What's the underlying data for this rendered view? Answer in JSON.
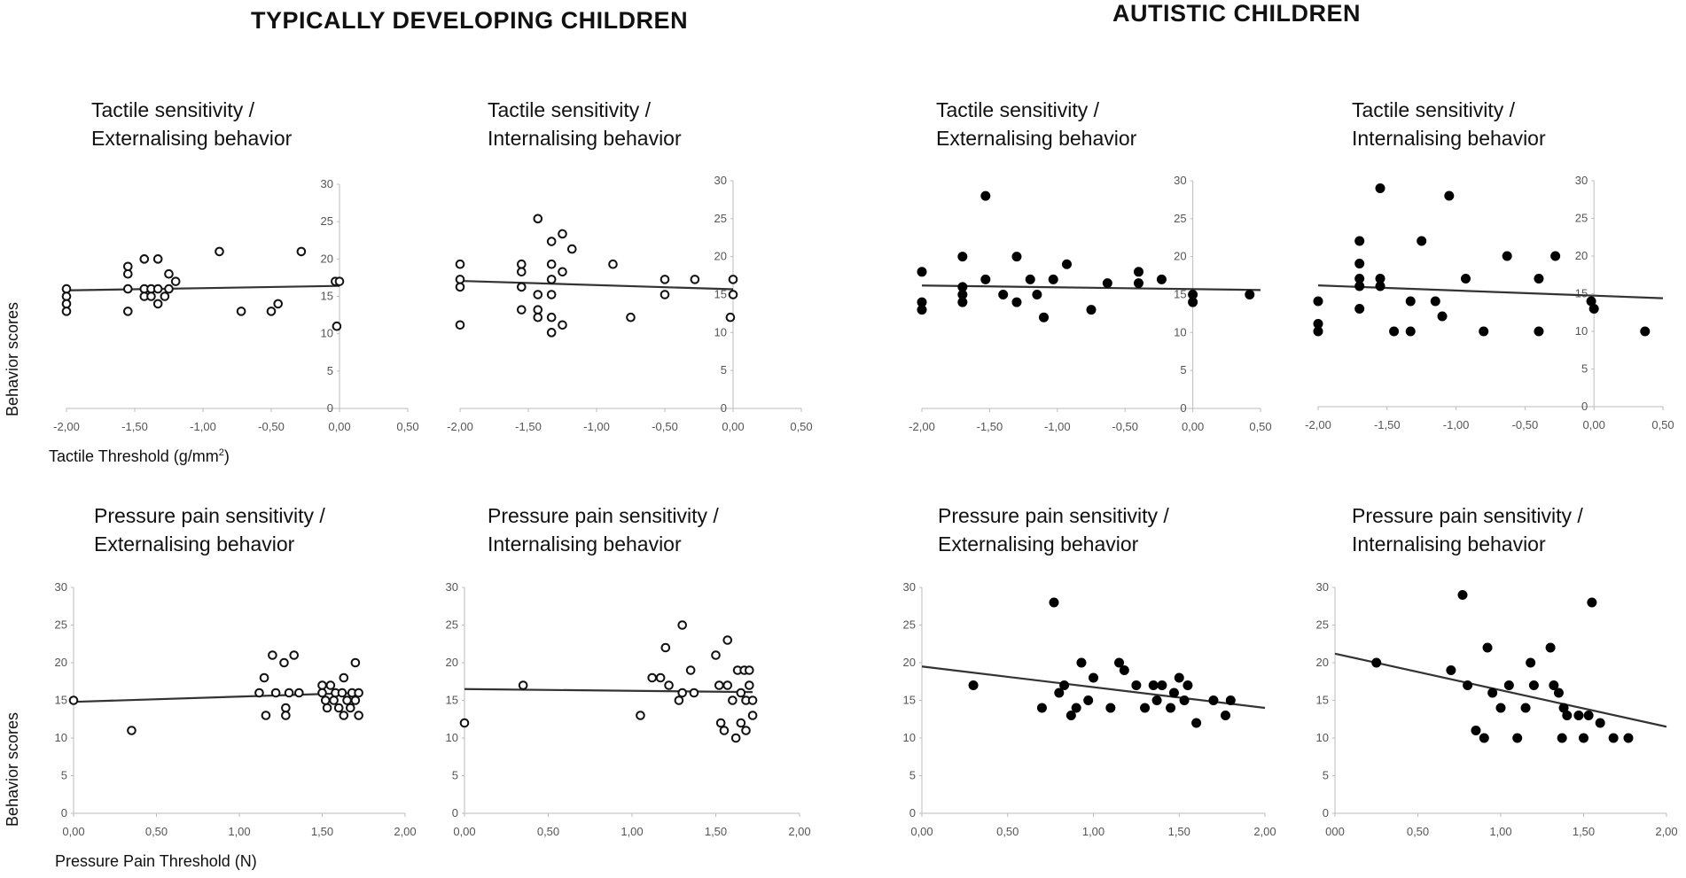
{
  "figure": {
    "left_group_title": "TYPICALLY DEVELOPING CHILDREN",
    "right_group_title": "AUTISTIC CHILDREN",
    "y_axis_label": "Behavior scores",
    "x_axis_label_tactile_prefix": "Tactile  Threshold (g/mm",
    "x_axis_label_tactile_sup": "2",
    "x_axis_label_tactile_suffix": ")",
    "x_axis_label_pressure": "Pressure Pain Threshold (N)"
  },
  "chart_data": [
    {
      "id": "td-tactile-ext",
      "type": "scatter",
      "group": "typically developing",
      "title_line1": "Tactile sensitivity /",
      "title_line2": "Externalising behavior",
      "xlim": [
        -2,
        0.5
      ],
      "ylim": [
        0,
        30
      ],
      "xticks": [
        -2,
        -1.5,
        -1,
        -0.5,
        0,
        0.5
      ],
      "xtick_labels": [
        "-2,00",
        "-1,50",
        "-1,00",
        "-0,50",
        "0,00",
        "0,50"
      ],
      "yticks": [
        0,
        5,
        10,
        15,
        20,
        25,
        30
      ],
      "ytick_labels": [
        "0",
        "5",
        "10",
        "15",
        "20",
        "25",
        "30"
      ],
      "marker": "open",
      "points": [
        [
          -2,
          16
        ],
        [
          -2,
          15
        ],
        [
          -2,
          14
        ],
        [
          -2,
          13
        ],
        [
          -1.55,
          19
        ],
        [
          -1.55,
          18
        ],
        [
          -1.55,
          16
        ],
        [
          -1.55,
          13
        ],
        [
          -1.43,
          20
        ],
        [
          -1.43,
          16
        ],
        [
          -1.43,
          15
        ],
        [
          -1.38,
          16
        ],
        [
          -1.38,
          15
        ],
        [
          -1.33,
          20
        ],
        [
          -1.33,
          16
        ],
        [
          -1.33,
          14
        ],
        [
          -1.28,
          15
        ],
        [
          -1.25,
          18
        ],
        [
          -1.25,
          16
        ],
        [
          -1.2,
          17
        ],
        [
          -0.88,
          21
        ],
        [
          -0.72,
          13
        ],
        [
          -0.5,
          13
        ],
        [
          -0.45,
          14
        ],
        [
          -0.28,
          21
        ],
        [
          -0.03,
          17
        ],
        [
          0,
          17
        ],
        [
          -0.02,
          11
        ]
      ],
      "trend": [
        [
          -2,
          15.8
        ],
        [
          0,
          16.4
        ]
      ],
      "trend_span": [
        -2,
        0
      ]
    },
    {
      "id": "td-tactile-int",
      "type": "scatter",
      "group": "typically developing",
      "title_line1": "Tactile sensitivity /",
      "title_line2": "Internalising behavior",
      "xlim": [
        -2,
        0.5
      ],
      "ylim": [
        0,
        30
      ],
      "xticks": [
        -2,
        -1.5,
        -1,
        -0.5,
        0,
        0.5
      ],
      "xtick_labels": [
        "-2,00",
        "-1,50",
        "-1,00",
        "-0,50",
        "0,00",
        "0,50"
      ],
      "yticks": [
        0,
        5,
        10,
        15,
        20,
        25,
        30
      ],
      "ytick_labels": [
        "0",
        "5",
        "10",
        "15",
        "20",
        "25",
        "30"
      ],
      "marker": "open",
      "points": [
        [
          -2,
          19
        ],
        [
          -2,
          17
        ],
        [
          -2,
          16
        ],
        [
          -2,
          11
        ],
        [
          -1.55,
          19
        ],
        [
          -1.55,
          18
        ],
        [
          -1.55,
          16
        ],
        [
          -1.55,
          13
        ],
        [
          -1.43,
          25
        ],
        [
          -1.43,
          15
        ],
        [
          -1.43,
          13
        ],
        [
          -1.43,
          12
        ],
        [
          -1.33,
          22
        ],
        [
          -1.33,
          19
        ],
        [
          -1.33,
          17
        ],
        [
          -1.33,
          15
        ],
        [
          -1.33,
          12
        ],
        [
          -1.33,
          10
        ],
        [
          -1.25,
          23
        ],
        [
          -1.25,
          18
        ],
        [
          -1.25,
          11
        ],
        [
          -1.18,
          21
        ],
        [
          -0.88,
          19
        ],
        [
          -0.75,
          12
        ],
        [
          -0.5,
          17
        ],
        [
          -0.5,
          15
        ],
        [
          -0.28,
          17
        ],
        [
          0,
          17
        ],
        [
          0,
          15
        ],
        [
          -0.02,
          12
        ]
      ],
      "trend": [
        [
          -2,
          16.8
        ],
        [
          0,
          15.7
        ]
      ],
      "trend_span": [
        -2,
        0
      ]
    },
    {
      "id": "aut-tactile-ext",
      "type": "scatter",
      "group": "autistic",
      "title_line1": "Tactile sensitivity /",
      "title_line2": "Externalising behavior",
      "xlim": [
        -2,
        0.5
      ],
      "ylim": [
        0,
        30
      ],
      "xticks": [
        -2,
        -1.5,
        -1,
        -0.5,
        0,
        0.5
      ],
      "xtick_labels": [
        "-2,00",
        "-1,50",
        "-1,00",
        "-0,50",
        "0,00",
        "0,50"
      ],
      "yticks": [
        0,
        5,
        10,
        15,
        20,
        25,
        30
      ],
      "ytick_labels": [
        "0",
        "5",
        "10",
        "15",
        "20",
        "25",
        "30"
      ],
      "marker": "filled",
      "points": [
        [
          -2,
          18
        ],
        [
          -2,
          14
        ],
        [
          -2,
          13
        ],
        [
          -1.7,
          20
        ],
        [
          -1.7,
          16
        ],
        [
          -1.7,
          15
        ],
        [
          -1.7,
          14
        ],
        [
          -1.53,
          28
        ],
        [
          -1.53,
          17
        ],
        [
          -1.4,
          15
        ],
        [
          -1.3,
          20
        ],
        [
          -1.3,
          14
        ],
        [
          -1.2,
          17
        ],
        [
          -1.15,
          15
        ],
        [
          -1.1,
          12
        ],
        [
          -1.03,
          17
        ],
        [
          -0.93,
          19
        ],
        [
          -0.75,
          13
        ],
        [
          -0.63,
          16.5
        ],
        [
          -0.4,
          18
        ],
        [
          -0.4,
          16.5
        ],
        [
          -0.23,
          17
        ],
        [
          0,
          15
        ],
        [
          0,
          14
        ],
        [
          0.42,
          15
        ]
      ],
      "trend": [
        [
          -2,
          16.2
        ],
        [
          0.5,
          15.6
        ]
      ],
      "trend_span": [
        -2,
        0.5
      ]
    },
    {
      "id": "aut-tactile-int",
      "type": "scatter",
      "group": "autistic",
      "title_line1": "Tactile sensitivity /",
      "title_line2": "Internalising behavior",
      "xlim": [
        -2,
        0.5
      ],
      "ylim": [
        0,
        30
      ],
      "xticks": [
        -2,
        -1.5,
        -1,
        -0.5,
        0,
        0.5
      ],
      "xtick_labels": [
        "-2,00",
        "-1,50",
        "-1,00",
        "-0,50",
        "0,00",
        "0,50"
      ],
      "yticks": [
        0,
        5,
        10,
        15,
        20,
        25,
        30
      ],
      "ytick_labels": [
        "0",
        "5",
        "10",
        "15",
        "20",
        "25",
        "30"
      ],
      "marker": "filled",
      "points": [
        [
          -2,
          14
        ],
        [
          -2,
          11
        ],
        [
          -2,
          10
        ],
        [
          -1.7,
          22
        ],
        [
          -1.7,
          19
        ],
        [
          -1.7,
          17
        ],
        [
          -1.7,
          16
        ],
        [
          -1.7,
          13
        ],
        [
          -1.55,
          29
        ],
        [
          -1.55,
          17
        ],
        [
          -1.55,
          16
        ],
        [
          -1.45,
          10
        ],
        [
          -1.33,
          14
        ],
        [
          -1.33,
          10
        ],
        [
          -1.25,
          22
        ],
        [
          -1.15,
          14
        ],
        [
          -1.1,
          12
        ],
        [
          -1.05,
          28
        ],
        [
          -0.93,
          17
        ],
        [
          -0.8,
          10
        ],
        [
          -0.63,
          20
        ],
        [
          -0.4,
          17
        ],
        [
          -0.4,
          10
        ],
        [
          -0.28,
          20
        ],
        [
          -0.02,
          14
        ],
        [
          0,
          13
        ],
        [
          0.37,
          10
        ]
      ],
      "trend": [
        [
          -2,
          16.1
        ],
        [
          0.5,
          14.4
        ]
      ],
      "trend_span": [
        -2,
        0.5
      ]
    },
    {
      "id": "td-pressure-ext",
      "type": "scatter",
      "group": "typically developing",
      "title_line1": "Pressure pain sensitivity /",
      "title_line2": "Externalising behavior",
      "xlim": [
        0,
        2
      ],
      "ylim": [
        0,
        30
      ],
      "xticks": [
        0,
        0.5,
        1,
        1.5,
        2
      ],
      "xtick_labels": [
        "0,00",
        "0,50",
        "1,00",
        "1,50",
        "2,00"
      ],
      "yticks": [
        0,
        5,
        10,
        15,
        20,
        25,
        30
      ],
      "ytick_labels": [
        "0",
        "5",
        "10",
        "15",
        "20",
        "25",
        "30"
      ],
      "marker": "open",
      "points": [
        [
          0,
          15
        ],
        [
          0.35,
          11
        ],
        [
          1.12,
          16
        ],
        [
          1.15,
          18
        ],
        [
          1.16,
          13
        ],
        [
          1.2,
          21
        ],
        [
          1.22,
          16
        ],
        [
          1.27,
          20
        ],
        [
          1.28,
          14
        ],
        [
          1.28,
          13
        ],
        [
          1.3,
          16
        ],
        [
          1.33,
          21
        ],
        [
          1.36,
          16
        ],
        [
          1.5,
          17
        ],
        [
          1.5,
          16
        ],
        [
          1.52,
          15
        ],
        [
          1.53,
          14
        ],
        [
          1.55,
          17
        ],
        [
          1.57,
          15
        ],
        [
          1.58,
          16
        ],
        [
          1.6,
          14
        ],
        [
          1.62,
          16
        ],
        [
          1.63,
          18
        ],
        [
          1.63,
          13
        ],
        [
          1.65,
          15
        ],
        [
          1.67,
          14
        ],
        [
          1.68,
          16
        ],
        [
          1.7,
          20
        ],
        [
          1.7,
          15
        ],
        [
          1.72,
          16
        ],
        [
          1.72,
          13
        ]
      ],
      "trend": [
        [
          0,
          14.8
        ],
        [
          1.72,
          16.0
        ]
      ],
      "trend_span": [
        0,
        1.72
      ]
    },
    {
      "id": "td-pressure-int",
      "type": "scatter",
      "group": "typically developing",
      "title_line1": "Pressure pain sensitivity /",
      "title_line2": "Internalising behavior",
      "xlim": [
        0,
        2
      ],
      "ylim": [
        0,
        30
      ],
      "xticks": [
        0,
        0.5,
        1,
        1.5,
        2
      ],
      "xtick_labels": [
        "0,00",
        "0,50",
        "1,00",
        "1,50",
        "2,00"
      ],
      "yticks": [
        0,
        5,
        10,
        15,
        20,
        25,
        30
      ],
      "ytick_labels": [
        "0",
        "5",
        "10",
        "15",
        "20",
        "25",
        "30"
      ],
      "marker": "open",
      "points": [
        [
          0,
          12
        ],
        [
          0.35,
          17
        ],
        [
          1.05,
          13
        ],
        [
          1.12,
          18
        ],
        [
          1.17,
          18
        ],
        [
          1.2,
          22
        ],
        [
          1.22,
          17
        ],
        [
          1.28,
          15
        ],
        [
          1.3,
          25
        ],
        [
          1.3,
          16
        ],
        [
          1.35,
          19
        ],
        [
          1.37,
          16
        ],
        [
          1.5,
          21
        ],
        [
          1.52,
          17
        ],
        [
          1.53,
          12
        ],
        [
          1.55,
          11
        ],
        [
          1.57,
          23
        ],
        [
          1.57,
          17
        ],
        [
          1.6,
          15
        ],
        [
          1.62,
          10
        ],
        [
          1.63,
          19
        ],
        [
          1.65,
          16
        ],
        [
          1.65,
          12
        ],
        [
          1.67,
          19
        ],
        [
          1.68,
          15
        ],
        [
          1.68,
          11
        ],
        [
          1.7,
          19
        ],
        [
          1.7,
          17
        ],
        [
          1.72,
          15
        ],
        [
          1.72,
          13
        ]
      ],
      "trend": [
        [
          0,
          16.5
        ],
        [
          1.72,
          16.1
        ]
      ],
      "trend_span": [
        0,
        1.72
      ]
    },
    {
      "id": "aut-pressure-ext",
      "type": "scatter",
      "group": "autistic",
      "title_line1": "Pressure pain sensitivity /",
      "title_line2": "Externalising behavior",
      "xlim": [
        0,
        2
      ],
      "ylim": [
        0,
        30
      ],
      "xticks": [
        0,
        0.5,
        1,
        1.5,
        2
      ],
      "xtick_labels": [
        "0,00",
        "0,50",
        "1,00",
        "1,50",
        "2,00"
      ],
      "yticks": [
        0,
        5,
        10,
        15,
        20,
        25,
        30
      ],
      "ytick_labels": [
        "0",
        "5",
        "10",
        "15",
        "20",
        "25",
        "30"
      ],
      "marker": "filled",
      "points": [
        [
          0.3,
          17
        ],
        [
          0.7,
          14
        ],
        [
          0.77,
          28
        ],
        [
          0.8,
          16
        ],
        [
          0.83,
          17
        ],
        [
          0.87,
          13
        ],
        [
          0.9,
          14
        ],
        [
          0.93,
          20
        ],
        [
          0.97,
          15
        ],
        [
          1.0,
          18
        ],
        [
          1.1,
          14
        ],
        [
          1.15,
          20
        ],
        [
          1.18,
          19
        ],
        [
          1.25,
          17
        ],
        [
          1.3,
          14
        ],
        [
          1.35,
          17
        ],
        [
          1.37,
          15
        ],
        [
          1.4,
          17
        ],
        [
          1.45,
          14
        ],
        [
          1.47,
          16
        ],
        [
          1.5,
          18
        ],
        [
          1.53,
          15
        ],
        [
          1.55,
          17
        ],
        [
          1.6,
          12
        ],
        [
          1.7,
          15
        ],
        [
          1.77,
          13
        ],
        [
          1.8,
          15
        ]
      ],
      "trend": [
        [
          0,
          19.5
        ],
        [
          2,
          14.0
        ]
      ],
      "trend_span": [
        0,
        2
      ]
    },
    {
      "id": "aut-pressure-int",
      "type": "scatter",
      "group": "autistic",
      "title_line1": "Pressure pain sensitivity /",
      "title_line2": "Internalising behavior",
      "xlim": [
        0,
        2
      ],
      "ylim": [
        0,
        30
      ],
      "xticks": [
        0,
        0.5,
        1,
        1.5,
        2
      ],
      "xtick_labels": [
        "000",
        "0,50",
        "1,00",
        "1,50",
        "2,00"
      ],
      "yticks": [
        0,
        5,
        10,
        15,
        20,
        25,
        30
      ],
      "ytick_labels": [
        "0",
        "5",
        "10",
        "15",
        "20",
        "25",
        "30"
      ],
      "marker": "filled",
      "points": [
        [
          0.25,
          20
        ],
        [
          0.7,
          19
        ],
        [
          0.77,
          29
        ],
        [
          0.8,
          17
        ],
        [
          0.85,
          11
        ],
        [
          0.9,
          10
        ],
        [
          0.92,
          22
        ],
        [
          0.95,
          16
        ],
        [
          1.0,
          14
        ],
        [
          1.05,
          17
        ],
        [
          1.1,
          10
        ],
        [
          1.15,
          14
        ],
        [
          1.18,
          20
        ],
        [
          1.2,
          17
        ],
        [
          1.3,
          22
        ],
        [
          1.32,
          17
        ],
        [
          1.35,
          16
        ],
        [
          1.37,
          10
        ],
        [
          1.38,
          14
        ],
        [
          1.4,
          13
        ],
        [
          1.47,
          13
        ],
        [
          1.5,
          10
        ],
        [
          1.53,
          13
        ],
        [
          1.55,
          28
        ],
        [
          1.6,
          12
        ],
        [
          1.68,
          10
        ],
        [
          1.77,
          10
        ]
      ],
      "trend": [
        [
          0,
          21.2
        ],
        [
          2,
          11.5
        ]
      ],
      "trend_span": [
        0,
        2
      ]
    }
  ]
}
